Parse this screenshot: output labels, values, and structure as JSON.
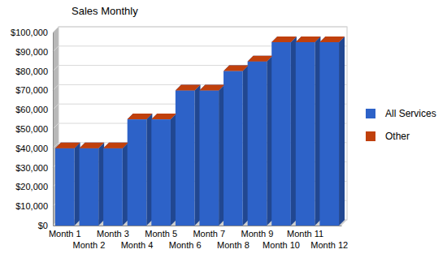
{
  "chart_data": {
    "type": "bar",
    "title": "Sales Monthly",
    "categories": [
      "Month 1",
      "Month 2",
      "Month 3",
      "Month 4",
      "Month 5",
      "Month 6",
      "Month 7",
      "Month 8",
      "Month 9",
      "Month 10",
      "Month 11",
      "Month 12"
    ],
    "series": [
      {
        "name": "All Services",
        "color": "#2d62c8",
        "values": [
          40000,
          40000,
          40000,
          55000,
          55000,
          70000,
          70000,
          80000,
          85000,
          95000,
          95000,
          95000
        ]
      },
      {
        "name": "Other",
        "color": "#c0400c",
        "values": [
          0,
          0,
          0,
          0,
          0,
          0,
          0,
          0,
          0,
          0,
          0,
          0
        ]
      }
    ],
    "stacked": true,
    "ylim": [
      0,
      100000
    ],
    "yticks": [
      {
        "value": 0,
        "label": "$0"
      },
      {
        "value": 10000,
        "label": "$10,000"
      },
      {
        "value": 20000,
        "label": "$20,000"
      },
      {
        "value": 30000,
        "label": "$30,000"
      },
      {
        "value": 40000,
        "label": "$40,000"
      },
      {
        "value": 50000,
        "label": "$50,000"
      },
      {
        "value": 60000,
        "label": "$60,000"
      },
      {
        "value": 70000,
        "label": "$70,000"
      },
      {
        "value": 80000,
        "label": "$80,000"
      },
      {
        "value": 90000,
        "label": "$90,000"
      },
      {
        "value": 100000,
        "label": "$100,000"
      }
    ],
    "grid": true,
    "legend": "right"
  }
}
